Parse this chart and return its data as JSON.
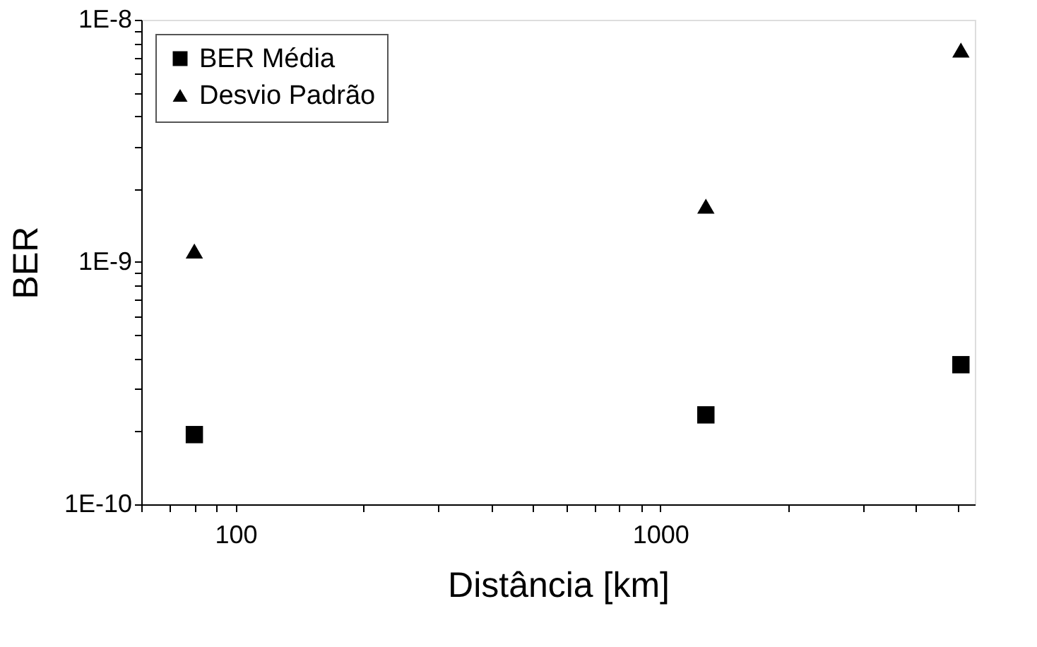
{
  "chart_data": {
    "type": "scatter",
    "xlabel": "Distância [km]",
    "ylabel": "BER",
    "log": "xy",
    "legend": "top left",
    "grid": false,
    "x": [
      80,
      1280,
      5100
    ],
    "series": [
      {
        "name": "BER Média",
        "color": "#000000",
        "marker": "square",
        "values": [
          1.94e-10,
          2.34e-10,
          3.77e-10
        ]
      },
      {
        "name": "Desvio Padrão",
        "color": "#000000",
        "marker": "triangle",
        "values": [
          1.11e-09,
          1.7e-09,
          7.5e-09
        ]
      }
    ],
    "xlim": [
      60,
      5500
    ],
    "xticks": [
      {
        "value": 60,
        "label": null
      },
      {
        "value": 70,
        "label": null
      },
      {
        "value": 80,
        "label": null
      },
      {
        "value": 90,
        "label": null
      },
      100,
      {
        "value": 200,
        "label": null
      },
      {
        "value": 300,
        "label": null
      },
      {
        "value": 400,
        "label": null
      },
      {
        "value": 500,
        "label": null
      },
      {
        "value": 600,
        "label": null
      },
      {
        "value": 700,
        "label": null
      },
      {
        "value": 800,
        "label": null
      },
      {
        "value": 900,
        "label": null
      },
      1000,
      {
        "value": 2000,
        "label": null
      },
      {
        "value": 3000,
        "label": null
      },
      {
        "value": 4000,
        "label": null
      },
      {
        "value": 5000,
        "label": null
      }
    ],
    "ylim": [
      1e-10,
      1e-08
    ],
    "yticks": [
      {
        "value": 1e-10,
        "label": "1E-10"
      },
      {
        "value": 2e-10,
        "label": null
      },
      {
        "value": 3e-10,
        "label": null
      },
      {
        "value": 4e-10,
        "label": null
      },
      {
        "value": 5e-10,
        "label": null
      },
      {
        "value": 6e-10,
        "label": null
      },
      {
        "value": 7e-10,
        "label": null
      },
      {
        "value": 8e-10,
        "label": null
      },
      {
        "value": 9e-10,
        "label": null
      },
      {
        "value": 1e-09,
        "label": "1E-9"
      },
      {
        "value": 2e-09,
        "label": null
      },
      {
        "value": 3e-09,
        "label": null
      },
      {
        "value": 4e-09,
        "label": null
      },
      {
        "value": 5e-09,
        "label": null
      },
      {
        "value": 6e-09,
        "label": null
      },
      {
        "value": 7e-09,
        "label": null
      },
      {
        "value": 8e-09,
        "label": null
      },
      {
        "value": 9e-09,
        "label": null
      },
      {
        "value": 1e-08,
        "label": "1E-8"
      }
    ]
  }
}
